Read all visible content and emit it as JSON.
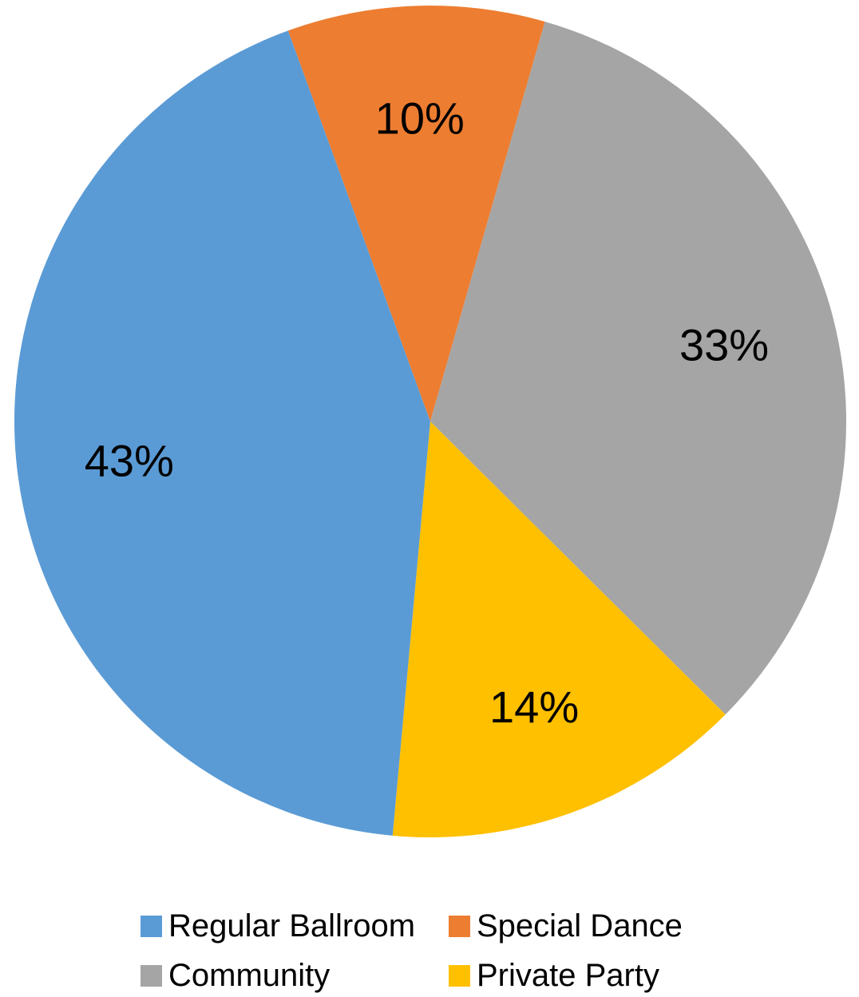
{
  "chart_data": {
    "type": "pie",
    "title": "",
    "start_angle_deg": -20,
    "direction": "clockwise",
    "slices": [
      {
        "name": "Special Dance",
        "value": 10,
        "label": "10%",
        "color": "#ED7D31"
      },
      {
        "name": "Community",
        "value": 33,
        "label": "33%",
        "color": "#A5A5A5"
      },
      {
        "name": "Private Party",
        "value": 14,
        "label": "14%",
        "color": "#FFC000"
      },
      {
        "name": "Regular Ballroom",
        "value": 43,
        "label": "43%",
        "color": "#5B9BD5"
      }
    ],
    "legend": {
      "position": "bottom",
      "items": [
        {
          "name": "Regular Ballroom",
          "color": "#5B9BD5"
        },
        {
          "name": "Special Dance",
          "color": "#ED7D31"
        },
        {
          "name": "Community",
          "color": "#A5A5A5"
        },
        {
          "name": "Private Party",
          "color": "#FFC000"
        }
      ]
    }
  }
}
